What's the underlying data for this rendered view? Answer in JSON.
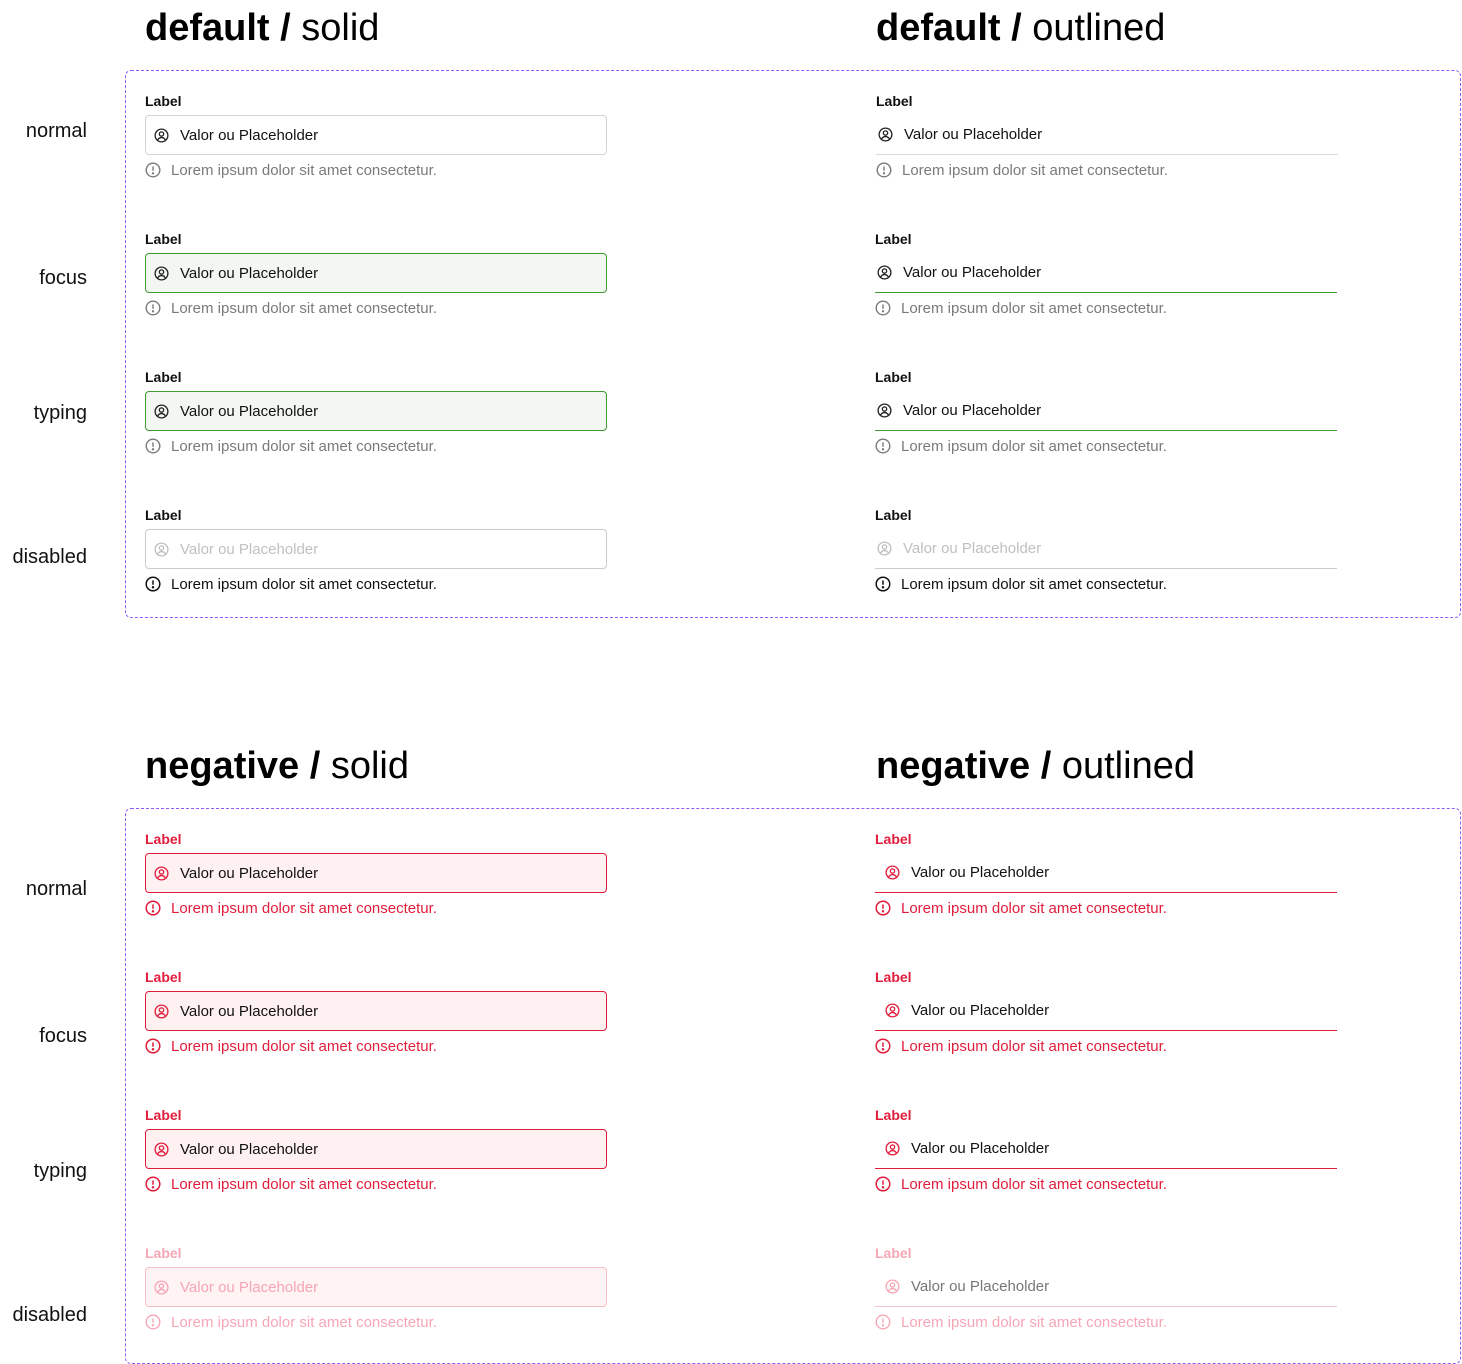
{
  "sections": [
    {
      "columns": [
        {
          "variant_bold": "default",
          "separator": " / ",
          "style_light": "solid"
        },
        {
          "variant_bold": "default",
          "separator": " / ",
          "style_light": "outlined"
        }
      ],
      "states": [
        "normal",
        "focus",
        "typing",
        "disabled"
      ]
    },
    {
      "columns": [
        {
          "variant_bold": "negative",
          "separator": " / ",
          "style_light": "solid"
        },
        {
          "variant_bold": "negative",
          "separator": " / ",
          "style_light": "outlined"
        }
      ],
      "states": [
        "normal",
        "focus",
        "typing",
        "disabled"
      ]
    }
  ],
  "field": {
    "label": "Label",
    "value": "Valor ou Placeholder",
    "helper": "Lorem ipsum dolor sit amet consectetur."
  },
  "icons": {
    "input_icon": "user-circle-icon",
    "helper_icon": "alert-circle-icon"
  },
  "colors": {
    "frame": "#8b5cf6",
    "focus": "#3f9b32",
    "focus_fill": "#f3f7f2",
    "negative": "#e11d3c",
    "negative_fill": "#fff1f2",
    "negative_disabled": "#f6a6b4"
  }
}
